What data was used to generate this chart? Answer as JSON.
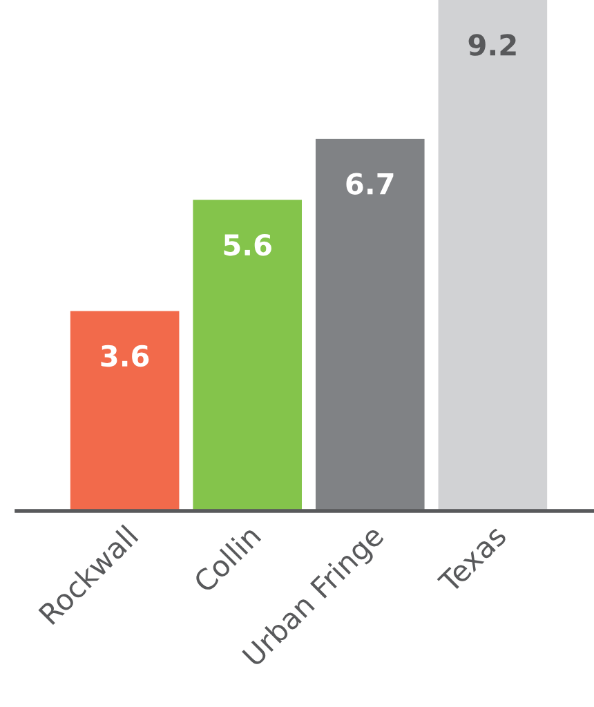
{
  "chart_data": {
    "type": "bar",
    "categories": [
      "Rockwall",
      "Collin",
      "Urban Fringe",
      "Texas"
    ],
    "values": [
      3.6,
      5.6,
      6.7,
      9.2
    ],
    "colors": [
      "#f26a4b",
      "#84c44b",
      "#808285",
      "#d1d2d4"
    ],
    "ylim": [
      0,
      9.2
    ],
    "data_labels": true,
    "tick_labels": "x",
    "grid": false,
    "legend": false
  }
}
